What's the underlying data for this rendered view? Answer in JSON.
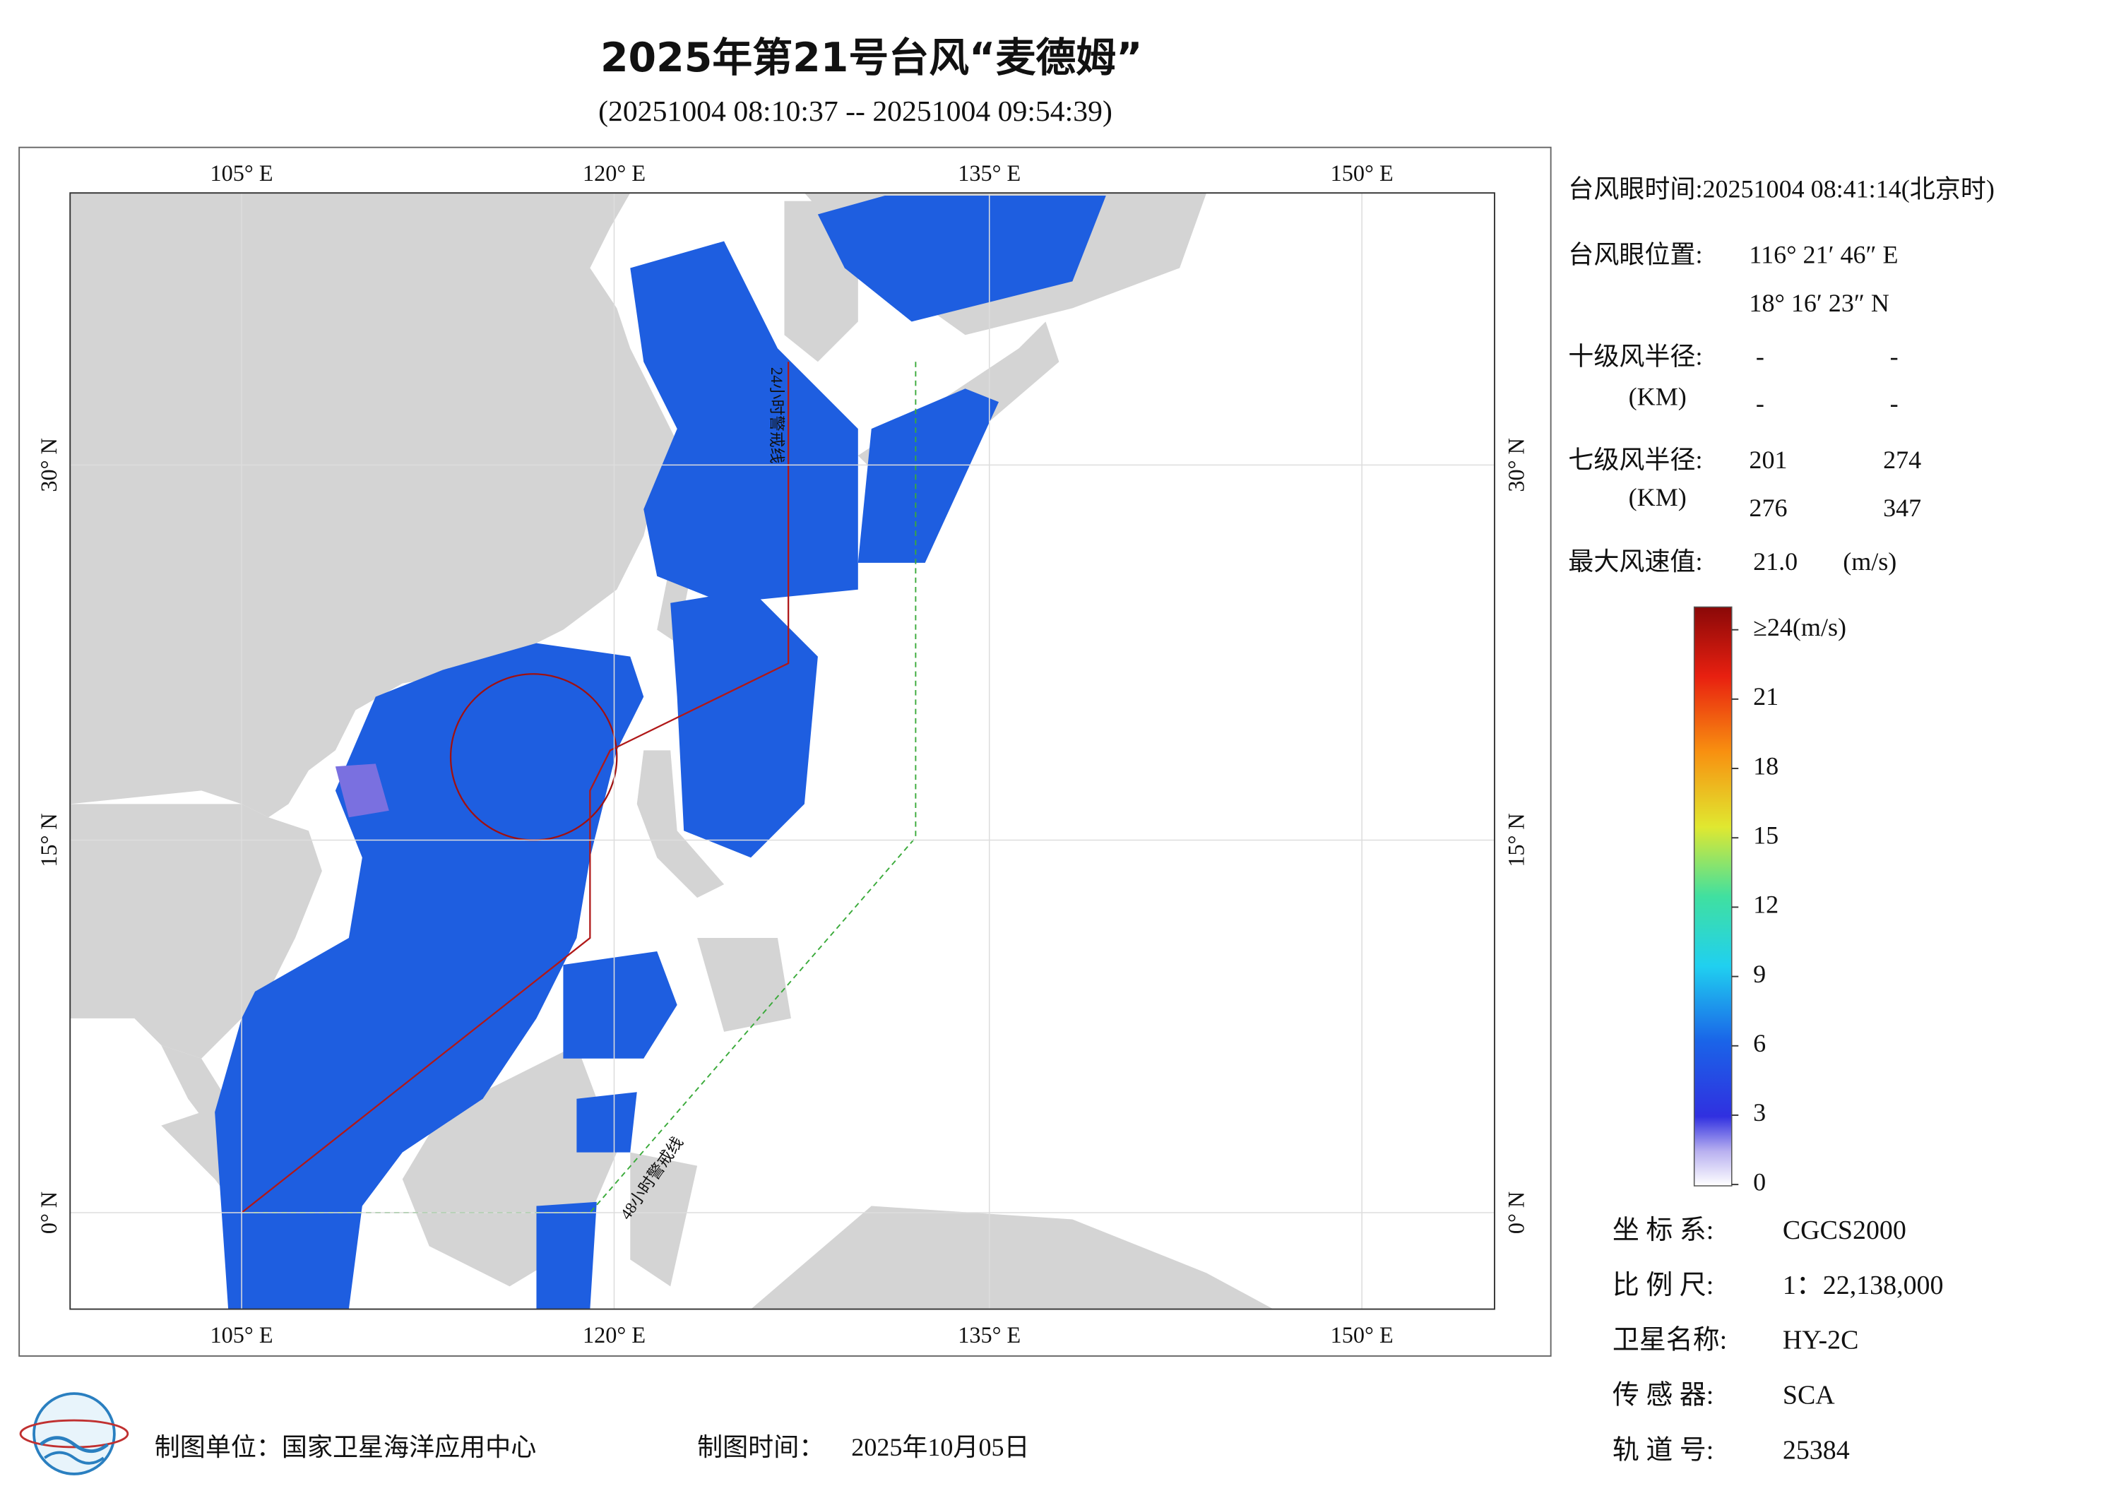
{
  "header": {
    "title": "2025年第21号台风“麦德姆”",
    "subtitle": "(20251004 08:10:37 -- 20251004 09:54:39)"
  },
  "map": {
    "lon_labels": [
      "105° E",
      "120° E",
      "135° E",
      "150° E"
    ],
    "lat_labels": [
      "30° N",
      "15° N",
      "0° N"
    ],
    "warning_lines": [
      "24小时警戒线",
      "48小时警戒线"
    ]
  },
  "info": {
    "eye_time": "台风眼时间:20251004 08:41:14(北京时)",
    "eye_position_label": "台风眼位置:",
    "eye_lon": "116° 21′ 46″ E",
    "eye_lat": "18° 16′ 23″ N",
    "r10_label": "十级风半径:",
    "r10_unit": "(KM)",
    "r10_values": [
      "-",
      "-",
      "-",
      "-"
    ],
    "r7_label": "七级风半径:",
    "r7_unit": "(KM)",
    "r7_values": [
      201,
      274,
      276,
      347
    ],
    "max_wind_label": "最大风速值:",
    "max_wind": "21.0",
    "max_wind_unit": "(m/s)"
  },
  "colorbar": {
    "ticks": [
      0,
      3,
      6,
      9,
      12,
      15,
      18,
      21,
      {
        "value": 24,
        "label": "≥24(m/s)"
      }
    ]
  },
  "meta": [
    {
      "label": "坐 标 系:",
      "value": "CGCS2000"
    },
    {
      "label": "比 例 尺:",
      "value": "1：22,138,000"
    },
    {
      "label": "卫星名称:",
      "value": "HY-2C"
    },
    {
      "label": "传 感 器:",
      "value": "SCA"
    },
    {
      "label": "轨 道 号:",
      "value": "25384"
    }
  ],
  "footer": {
    "unit_label": "制图单位：国家卫星海洋应用中心",
    "time_label": "制图时间：",
    "time": "2025年10月05日"
  }
}
